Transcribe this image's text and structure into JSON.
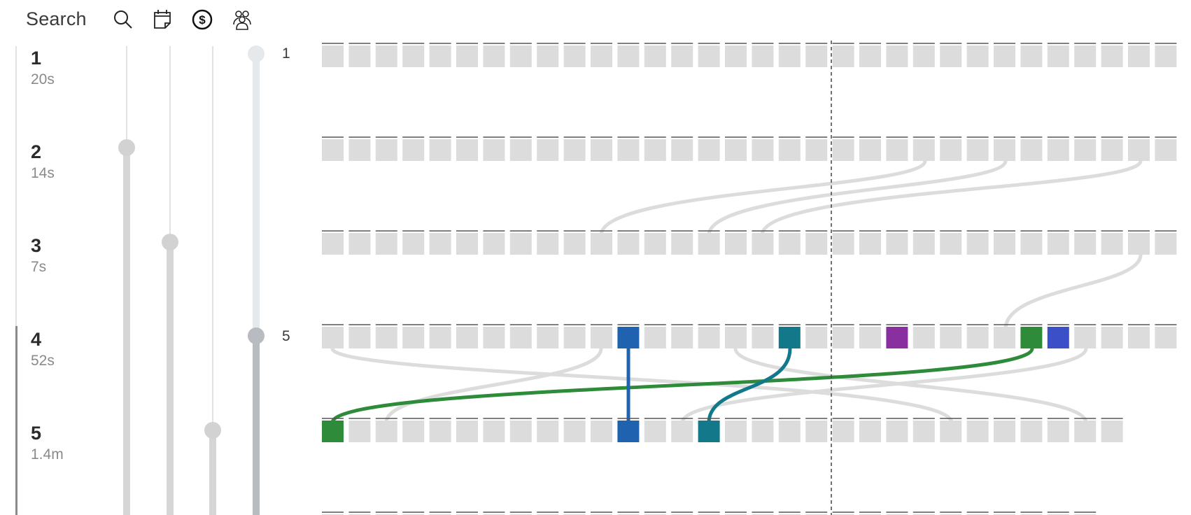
{
  "toolbar": {
    "search_label": "Search",
    "icons": [
      "search-icon",
      "calendar-icon",
      "dollar-icon",
      "people-icon"
    ]
  },
  "steps": [
    {
      "number": "1",
      "time": "20s"
    },
    {
      "number": "2",
      "time": "14s"
    },
    {
      "number": "3",
      "time": "7s"
    },
    {
      "number": "4",
      "time": "52s"
    },
    {
      "number": "5",
      "time": "1.4m"
    }
  ],
  "level_markers": {
    "top": "1",
    "bottom": "5"
  },
  "colors": {
    "cell_default": "#dcdcdc",
    "link_default": "#dcdcdc",
    "green": "#2e8b3a",
    "blue": "#1f63b0",
    "teal": "#12788a",
    "purple": "#8a2fa0",
    "royal_blue": "#3a4fc8",
    "playhead": "#444444"
  },
  "highlighted_cells": [
    {
      "row": 4,
      "col": 11,
      "color": "blue"
    },
    {
      "row": 4,
      "col": 17,
      "color": "teal"
    },
    {
      "row": 4,
      "col": 21,
      "color": "purple"
    },
    {
      "row": 4,
      "col": 26,
      "color": "green"
    },
    {
      "row": 4,
      "col": 27,
      "color": "royal_blue"
    },
    {
      "row": 5,
      "col": 0,
      "color": "green"
    },
    {
      "row": 5,
      "col": 11,
      "color": "blue"
    },
    {
      "row": 5,
      "col": 14,
      "color": "teal"
    }
  ]
}
